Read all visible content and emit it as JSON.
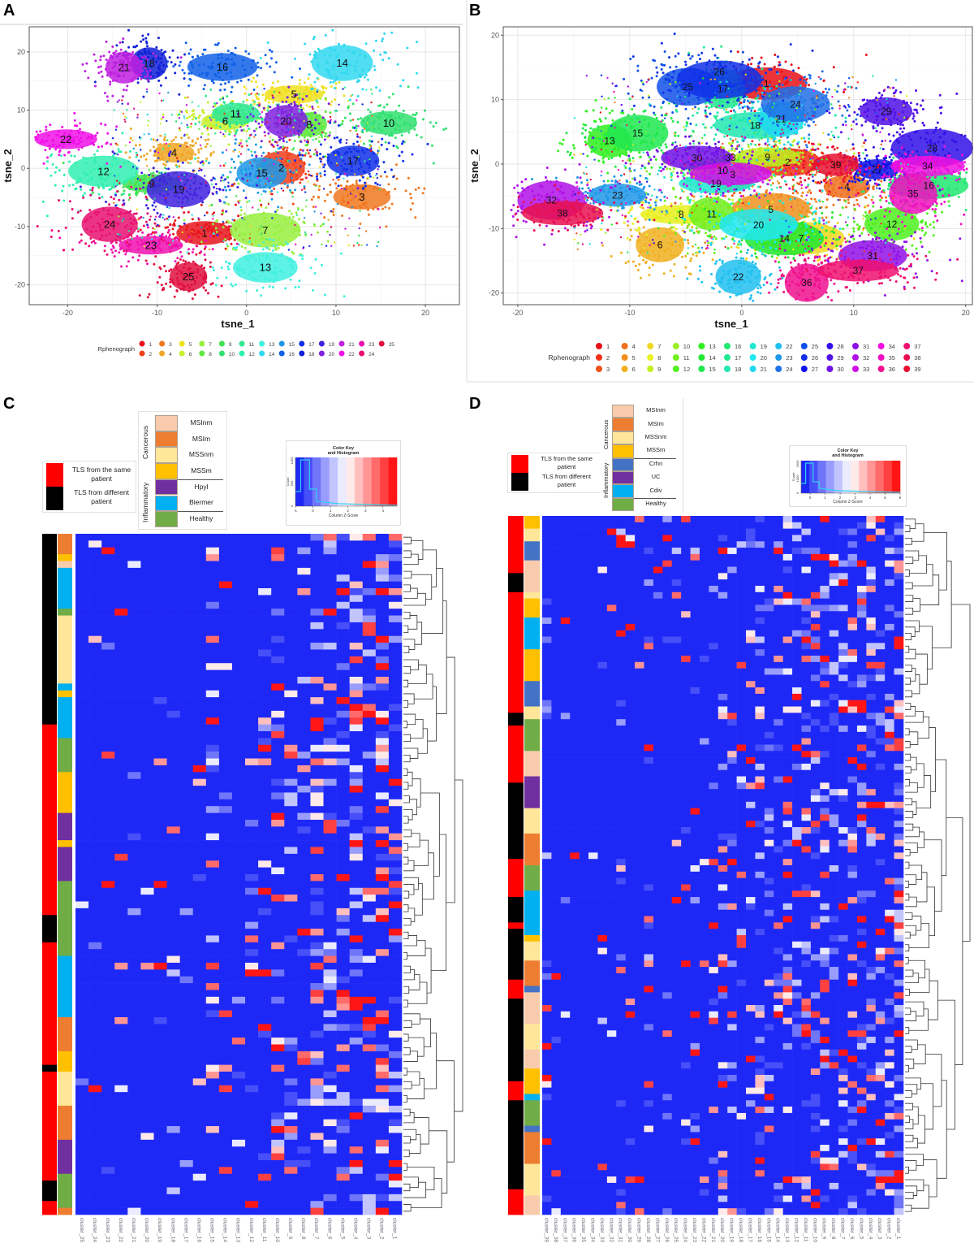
{
  "panels": {
    "A": "A",
    "B": "B",
    "C": "C",
    "D": "D"
  },
  "chart_data": [
    {
      "id": "A",
      "type": "scatter",
      "xlabel": "tsne_1",
      "ylabel": "tsne_2",
      "xlim": [
        -24.3,
        23.8
      ],
      "ylim": [
        -23.4,
        24.3
      ],
      "xticks": [
        "-20",
        "-10",
        "0",
        "10",
        "20"
      ],
      "yticks": [
        "-20",
        "-10",
        "0",
        "10",
        "20"
      ],
      "grid": true,
      "legend": {
        "title": "Rphenograph",
        "position": "bottom",
        "rows": 2
      },
      "clusters": [
        {
          "label": "1",
          "x": -4.7,
          "y": -11.1,
          "color": "#E8141C"
        },
        {
          "label": "2",
          "x": 3.9,
          "y": 0.1,
          "color": "#F0401C"
        },
        {
          "label": "3",
          "x": 12.9,
          "y": -4.9,
          "color": "#F07820"
        },
        {
          "label": "4",
          "x": -8.1,
          "y": 2.7,
          "color": "#F0A828"
        },
        {
          "label": "5",
          "x": 5.3,
          "y": 12.7,
          "color": "#F0E020"
        },
        {
          "label": "6",
          "x": -2.4,
          "y": 8.1,
          "color": "#C8F030"
        },
        {
          "label": "7",
          "x": 2.1,
          "y": -10.6,
          "color": "#98F040"
        },
        {
          "label": "8",
          "x": 7.0,
          "y": 7.5,
          "color": "#60E840"
        },
        {
          "label": "9",
          "x": -10.6,
          "y": -2.6,
          "color": "#40E050"
        },
        {
          "label": "10",
          "x": 15.9,
          "y": 7.8,
          "color": "#30E070"
        },
        {
          "label": "11",
          "x": -1.2,
          "y": 9.4,
          "color": "#30E890"
        },
        {
          "label": "12",
          "x": -16.0,
          "y": -0.5,
          "color": "#30F0B0"
        },
        {
          "label": "13",
          "x": 2.1,
          "y": -17.0,
          "color": "#40F0E0"
        },
        {
          "label": "14",
          "x": 10.7,
          "y": 18.1,
          "color": "#30D8F0"
        },
        {
          "label": "15",
          "x": 1.7,
          "y": -0.8,
          "color": "#2098E8"
        },
        {
          "label": "16",
          "x": -2.7,
          "y": 17.4,
          "color": "#1060E8"
        },
        {
          "label": "17",
          "x": 11.9,
          "y": 1.3,
          "color": "#1030E8"
        },
        {
          "label": "18",
          "x": -10.9,
          "y": 18.0,
          "color": "#1020D8"
        },
        {
          "label": "19",
          "x": -7.6,
          "y": -3.6,
          "color": "#4020E0"
        },
        {
          "label": "20",
          "x": 4.4,
          "y": 8.1,
          "color": "#8020E0"
        },
        {
          "label": "21",
          "x": -13.7,
          "y": 17.3,
          "color": "#C020E0"
        },
        {
          "label": "22",
          "x": -20.2,
          "y": 5.0,
          "color": "#F010E8"
        },
        {
          "label": "23",
          "x": -10.7,
          "y": -13.2,
          "color": "#F010B0"
        },
        {
          "label": "24",
          "x": -15.3,
          "y": -9.6,
          "color": "#E81070"
        },
        {
          "label": "25",
          "x": -6.5,
          "y": -18.6,
          "color": "#E01040"
        }
      ]
    },
    {
      "id": "B",
      "type": "scatter",
      "xlabel": "tsne_1",
      "ylabel": "tsne_2",
      "xlim": [
        -21.3,
        20.6
      ],
      "ylim": [
        -21.8,
        21.3
      ],
      "xticks": [
        "-20",
        "-10",
        "0",
        "10",
        "20"
      ],
      "yticks": [
        "-20",
        "-10",
        "0",
        "10",
        "20"
      ],
      "grid": true,
      "legend": {
        "title": "Rphenograph",
        "position": "bottom",
        "rows": 3
      },
      "clusters": [
        {
          "label": "1",
          "x": 2.2,
          "y": 12.5,
          "color": "#E81018"
        },
        {
          "label": "2",
          "x": 4.1,
          "y": 0.3,
          "color": "#F03018"
        },
        {
          "label": "3",
          "x": -0.8,
          "y": -1.6,
          "color": "#F05018"
        },
        {
          "label": "4",
          "x": 9.4,
          "y": -3.5,
          "color": "#F07020"
        },
        {
          "label": "5",
          "x": 2.6,
          "y": -7.0,
          "color": "#F09020"
        },
        {
          "label": "6",
          "x": -7.3,
          "y": -12.5,
          "color": "#F0B020"
        },
        {
          "label": "7",
          "x": 5.3,
          "y": -11.5,
          "color": "#F0D820"
        },
        {
          "label": "8",
          "x": -5.4,
          "y": -7.8,
          "color": "#E8F020"
        },
        {
          "label": "9",
          "x": 2.3,
          "y": 1.1,
          "color": "#C0F020"
        },
        {
          "label": "10",
          "x": -1.7,
          "y": -1.0,
          "color": "#98F028"
        },
        {
          "label": "11",
          "x": -2.7,
          "y": -7.7,
          "color": "#70F020"
        },
        {
          "label": "12",
          "x": 13.4,
          "y": -9.3,
          "color": "#50F020"
        },
        {
          "label": "13",
          "x": -11.8,
          "y": 3.6,
          "color": "#30F020"
        },
        {
          "label": "14",
          "x": 3.8,
          "y": -11.5,
          "color": "#20E830"
        },
        {
          "label": "15",
          "x": -9.3,
          "y": 4.8,
          "color": "#20E850"
        },
        {
          "label": "16",
          "x": 16.7,
          "y": -3.3,
          "color": "#20E870"
        },
        {
          "label": "17",
          "x": -1.7,
          "y": 11.7,
          "color": "#20E890"
        },
        {
          "label": "18",
          "x": 1.2,
          "y": 6.0,
          "color": "#20E8B0"
        },
        {
          "label": "19",
          "x": -2.3,
          "y": -3.0,
          "color": "#20E8D0"
        },
        {
          "label": "20",
          "x": 1.5,
          "y": -9.4,
          "color": "#20E8F0"
        },
        {
          "label": "21",
          "x": 3.5,
          "y": 7.0,
          "color": "#20D8F0"
        },
        {
          "label": "22",
          "x": -0.3,
          "y": -17.5,
          "color": "#20C0F0"
        },
        {
          "label": "23",
          "x": -11.1,
          "y": -4.8,
          "color": "#2098E8"
        },
        {
          "label": "24",
          "x": 4.8,
          "y": 9.3,
          "color": "#2070E8"
        },
        {
          "label": "25",
          "x": -4.8,
          "y": 12.0,
          "color": "#1050E8"
        },
        {
          "label": "26",
          "x": -2.0,
          "y": 13.1,
          "color": "#1030E8"
        },
        {
          "label": "27",
          "x": 12.1,
          "y": -0.8,
          "color": "#1010E8"
        },
        {
          "label": "28",
          "x": 17.0,
          "y": 2.5,
          "color": "#3010E8"
        },
        {
          "label": "29",
          "x": 12.9,
          "y": 8.2,
          "color": "#5010E8"
        },
        {
          "label": "30",
          "x": -4.0,
          "y": 1.0,
          "color": "#7010E8"
        },
        {
          "label": "31",
          "x": 11.7,
          "y": -14.2,
          "color": "#9010E8"
        },
        {
          "label": "32",
          "x": -17.0,
          "y": -5.6,
          "color": "#B010E8"
        },
        {
          "label": "33",
          "x": -1.0,
          "y": -1.5,
          "color": "#D010E8"
        },
        {
          "label": "34",
          "x": 16.6,
          "y": -0.3,
          "color": "#F010E0"
        },
        {
          "label": "35",
          "x": 15.3,
          "y": -4.6,
          "color": "#F010C0"
        },
        {
          "label": "36",
          "x": 5.8,
          "y": -18.4,
          "color": "#F01090"
        },
        {
          "label": "37",
          "x": 10.4,
          "y": -16.5,
          "color": "#F01070"
        },
        {
          "label": "38",
          "x": -16.0,
          "y": -7.6,
          "color": "#E81050"
        },
        {
          "label": "39",
          "x": 8.4,
          "y": -0.1,
          "color": "#E81030"
        }
      ]
    },
    {
      "id": "C",
      "type": "heatmap",
      "columns": [
        "cluster_25",
        "cluster_24",
        "cluster_23",
        "cluster_22",
        "cluster_21",
        "cluster_20",
        "cluster_19",
        "cluster_18",
        "cluster_17",
        "cluster_16",
        "cluster_15",
        "cluster_14",
        "cluster_13",
        "cluster_12",
        "cluster_11",
        "cluster_10",
        "cluster_9",
        "cluster_8",
        "cluster_7",
        "cluster_6",
        "cluster_5",
        "cluster_4",
        "cluster_3",
        "cluster_2",
        "cluster_1"
      ],
      "n_rows": 100,
      "row_dendrogram": true,
      "patient_legend": [
        {
          "label": "TLS from the same patient",
          "color": "#FF0000"
        },
        {
          "label": "TLS from different patient",
          "color": "#000000"
        }
      ],
      "group_headers": [
        "Cancerous",
        "Inflammatory"
      ],
      "group_legend": [
        {
          "label": "MSInm",
          "color": "#F8CBAD"
        },
        {
          "label": "MSIm",
          "color": "#ED7D31"
        },
        {
          "label": "MSSnm",
          "color": "#FFE699"
        },
        {
          "label": "MSSm",
          "color": "#FFC000"
        },
        {
          "label": "Hpyl",
          "color": "#7030A0"
        },
        {
          "label": "Biermer",
          "color": "#00B0F0"
        },
        {
          "label": "Healthy",
          "color": "#70AD47"
        }
      ],
      "color_key": {
        "title_line1": "Color Key",
        "title_line2": "and Histogram",
        "xlabel": "Column Z-Score",
        "ylabel": "Count",
        "xticks": [
          "-1",
          "0",
          "1",
          "2",
          "3",
          "4"
        ],
        "yticks": [
          "0",
          "500",
          "1000"
        ],
        "zlim": [
          -1,
          4.8
        ],
        "low_color": "#0000FF",
        "mid_color": "#FFFFFF",
        "high_color": "#FF0000"
      }
    },
    {
      "id": "D",
      "type": "heatmap",
      "columns": [
        "cluster_39",
        "cluster_38",
        "cluster_37",
        "cluster_36",
        "cluster_35",
        "cluster_34",
        "cluster_33",
        "cluster_32",
        "cluster_31",
        "cluster_30",
        "cluster_29",
        "cluster_28",
        "cluster_27",
        "cluster_26",
        "cluster_25",
        "cluster_24",
        "cluster_23",
        "cluster_22",
        "cluster_21",
        "cluster_20",
        "cluster_19",
        "cluster_18",
        "cluster_17",
        "cluster_16",
        "cluster_15",
        "cluster_14",
        "cluster_13",
        "cluster_12",
        "cluster_11",
        "cluster_10",
        "cluster_9",
        "cluster_8",
        "cluster_7",
        "cluster_6",
        "cluster_5",
        "cluster_4",
        "cluster_3",
        "cluster_2",
        "cluster_1"
      ],
      "n_rows": 110,
      "row_dendrogram": true,
      "patient_legend": [
        {
          "label": "TLS from the same patient",
          "color": "#FF0000"
        },
        {
          "label": "TLS from different patient",
          "color": "#000000"
        }
      ],
      "group_headers": [
        "Cancerous",
        "Inflammatory"
      ],
      "group_legend": [
        {
          "label": "MSInm",
          "color": "#F8CBAD"
        },
        {
          "label": "MSIm",
          "color": "#ED7D31"
        },
        {
          "label": "MSSnm",
          "color": "#FFE699"
        },
        {
          "label": "MSSm",
          "color": "#FFC000"
        },
        {
          "label": "Crhn",
          "color": "#4472C4"
        },
        {
          "label": "UC",
          "color": "#7030A0"
        },
        {
          "label": "Cdiv",
          "color": "#00B0F0"
        },
        {
          "label": "Healthy",
          "color": "#70AD47"
        }
      ],
      "color_key": {
        "title_line1": "Color Key",
        "title_line2": "and Histogram",
        "xlabel": "Column Z-Score",
        "ylabel": "Count",
        "xticks": [
          "0",
          "1",
          "2",
          "3",
          "4",
          "5",
          "6"
        ],
        "yticks": [
          "0",
          "1000",
          "2000"
        ],
        "zlim": [
          -0.6,
          6
        ],
        "low_color": "#0000FF",
        "mid_color": "#FFFFFF",
        "high_color": "#FF0000"
      }
    }
  ]
}
